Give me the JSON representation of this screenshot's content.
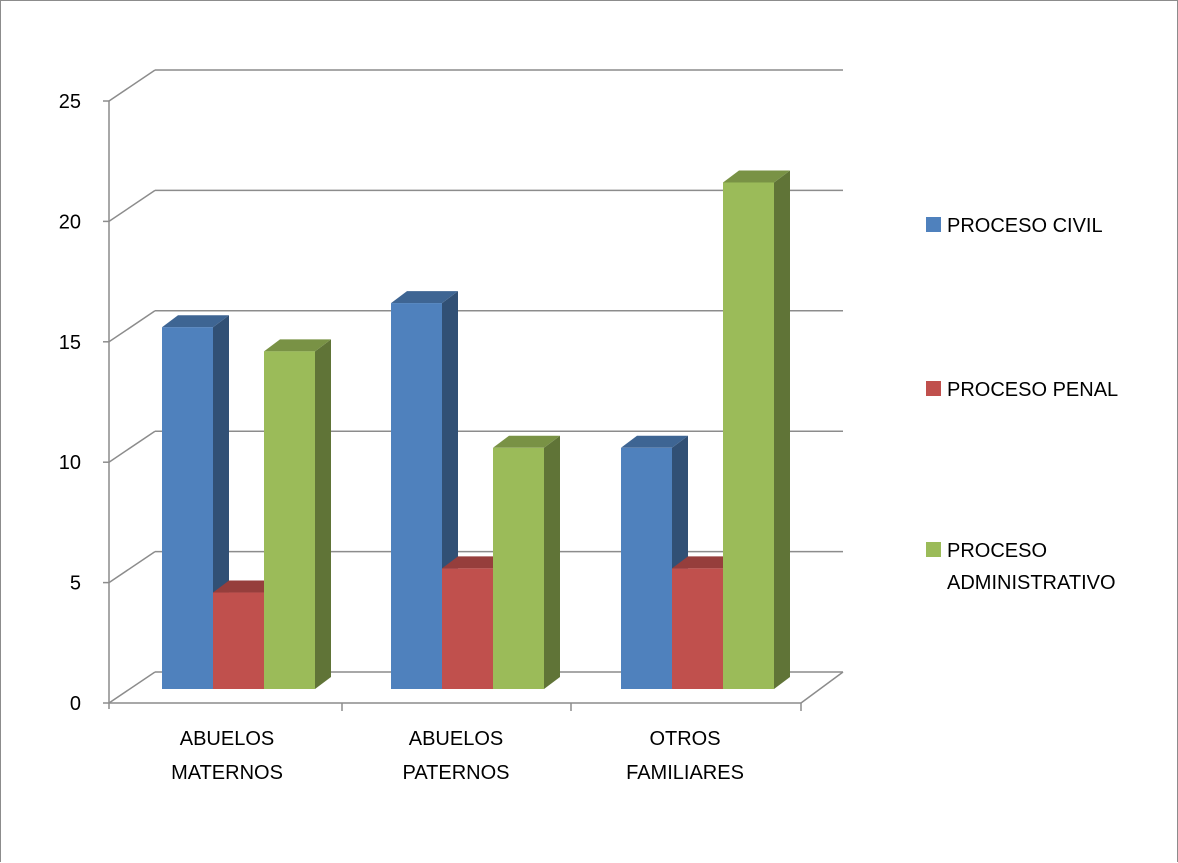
{
  "chart_data": {
    "type": "bar",
    "variant": "3d-clustered-column",
    "title": "",
    "xlabel": "",
    "ylabel": "",
    "categories": [
      [
        "ABUELOS",
        "MATERNOS"
      ],
      [
        "ABUELOS",
        "PATERNOS"
      ],
      [
        "OTROS",
        "FAMILIARES"
      ]
    ],
    "series": [
      {
        "name": [
          "PROCESO CIVIL"
        ],
        "values": [
          15,
          16,
          10
        ],
        "color": "#4f81bd"
      },
      {
        "name": [
          "PROCESO PENAL"
        ],
        "values": [
          4,
          5,
          5
        ],
        "color": "#c0504d"
      },
      {
        "name": [
          "PROCESO",
          "ADMINISTRATIVO"
        ],
        "values": [
          14,
          10,
          21
        ],
        "color": "#9bbb59"
      }
    ],
    "ylim": [
      0,
      25
    ],
    "yticks": [
      "0",
      "5",
      "10",
      "15",
      "20",
      "25"
    ],
    "grid": true,
    "legend_position": "right"
  }
}
